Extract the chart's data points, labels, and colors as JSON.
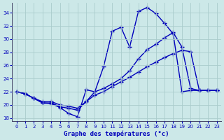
{
  "xlabel": "Graphe des températures (°c)",
  "xlim": [
    -0.5,
    23.5
  ],
  "ylim": [
    17.5,
    35.5
  ],
  "yticks": [
    18,
    20,
    22,
    24,
    26,
    28,
    30,
    32,
    34
  ],
  "xticks": [
    0,
    1,
    2,
    3,
    4,
    5,
    6,
    7,
    8,
    9,
    10,
    11,
    12,
    13,
    14,
    15,
    16,
    17,
    18,
    19,
    20,
    21,
    22,
    23
  ],
  "background_color": "#cce8e8",
  "line_color": "#0000bb",
  "grid_color": "#aacccc",
  "curve1_x": [
    0,
    1,
    2,
    3,
    4,
    5,
    6,
    7,
    8,
    9,
    10,
    11,
    12,
    13,
    14,
    15,
    16,
    17,
    18,
    19,
    20,
    21,
    22,
    23
  ],
  "curve1_y": [
    22.0,
    21.7,
    21.0,
    20.3,
    20.2,
    19.6,
    18.7,
    18.2,
    22.3,
    22.0,
    25.8,
    31.2,
    31.8,
    28.8,
    34.2,
    34.8,
    33.9,
    32.4,
    30.8,
    22.0,
    22.2,
    22.2,
    22.2,
    22.2
  ],
  "curve2_x": [
    0,
    1,
    2,
    3,
    4,
    5,
    6,
    7,
    8,
    9,
    10,
    11,
    12,
    13,
    14,
    15,
    16,
    17,
    18,
    19,
    20,
    21,
    22,
    23
  ],
  "curve2_y": [
    22.0,
    21.7,
    21.0,
    20.3,
    20.3,
    19.7,
    19.5,
    19.2,
    20.5,
    22.0,
    22.5,
    23.2,
    24.0,
    25.2,
    27.0,
    28.4,
    29.2,
    30.2,
    31.0,
    28.8,
    22.5,
    22.2,
    22.2,
    22.2
  ],
  "curve3_x": [
    0,
    1,
    2,
    3,
    4,
    5,
    6,
    7,
    8,
    9,
    10,
    11,
    12,
    13,
    14,
    15,
    16,
    17,
    18,
    19,
    20,
    21,
    22,
    23
  ],
  "curve3_y": [
    22.0,
    21.7,
    21.0,
    20.5,
    20.5,
    20.0,
    19.8,
    19.5,
    20.5,
    21.5,
    22.0,
    22.8,
    23.5,
    24.2,
    25.0,
    25.8,
    26.5,
    27.2,
    27.8,
    28.3,
    28.1,
    22.2,
    22.2,
    22.2
  ]
}
